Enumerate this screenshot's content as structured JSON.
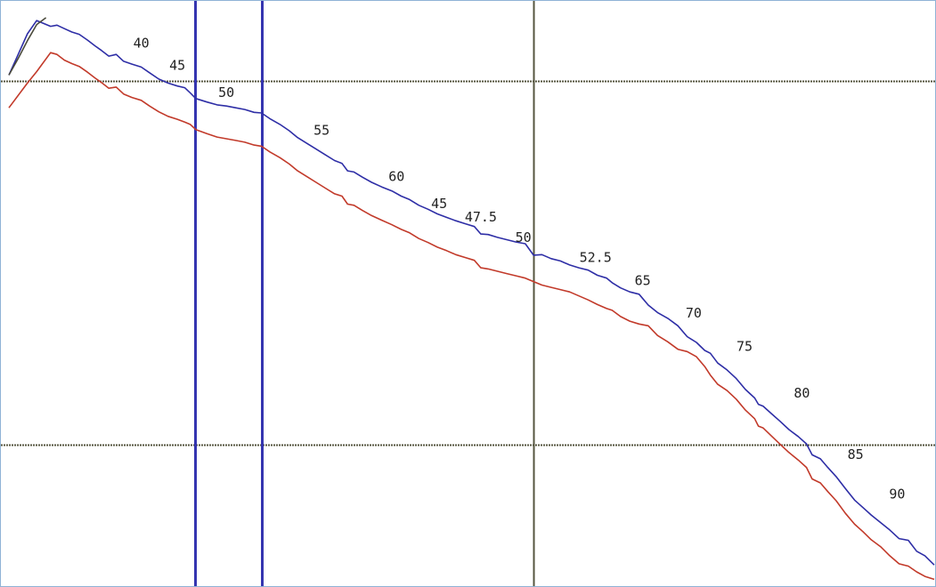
{
  "chart_data": {
    "type": "line",
    "title": "",
    "xlabel": "",
    "ylabel": "",
    "grid": false,
    "x_range": [
      0,
      100
    ],
    "y_range": [
      0,
      100
    ],
    "colors": {
      "upper_trace": "#2e2ea6",
      "lower_trace": "#c23a2a",
      "start_trace": "#4a4a3c",
      "reference_line": "#55553f",
      "marker_line": "#3535b0",
      "frame": "#8fb3d6"
    },
    "reference_lines": {
      "horizontal_y": [
        86.9,
        23.6
      ],
      "vertical_x": [
        56.7
      ]
    },
    "marker_lines_x": [
      20.1,
      27.3
    ],
    "series": [
      {
        "key": "upper",
        "x": [
          0.0,
          2.0,
          3.0,
          4.5,
          5.2,
          6.0,
          6.8,
          7.6,
          8.5,
          9.3,
          10.0,
          10.8,
          11.6,
          12.4,
          13.3,
          14.3,
          15.2,
          16.2,
          17.2,
          18.2,
          19.0,
          19.6,
          20.2,
          21.4,
          22.5,
          23.5,
          24.5,
          25.5,
          26.5,
          27.3,
          28.2,
          29.3,
          30.3,
          31.2,
          32.2,
          33.2,
          34.2,
          35.2,
          36.0,
          36.6,
          37.3,
          38.2,
          39.2,
          40.3,
          41.4,
          42.4,
          43.3,
          44.3,
          45.3,
          46.3,
          47.3,
          48.3,
          49.3,
          50.3,
          51.0,
          51.8,
          52.8,
          53.8,
          54.8,
          55.8,
          56.7,
          57.6,
          58.6,
          59.6,
          60.6,
          61.6,
          62.6,
          63.6,
          64.6,
          65.2,
          66.1,
          67.1,
          68.1,
          69.1,
          70.1,
          71.2,
          72.3,
          73.3,
          74.3,
          75.2,
          75.8,
          76.6,
          77.6,
          78.6,
          79.6,
          80.6,
          81.0,
          81.5,
          82.4,
          83.3,
          84.3,
          85.3,
          86.2,
          86.8,
          87.7,
          88.5,
          89.4,
          90.4,
          91.4,
          92.3,
          93.2,
          94.2,
          95.2,
          96.2,
          97.2,
          98.1,
          99.0,
          100.0
        ],
        "y": [
          88.0,
          95.2,
          97.5,
          96.5,
          96.7,
          96.1,
          95.5,
          95.1,
          94.1,
          93.1,
          92.3,
          91.3,
          91.6,
          90.4,
          89.9,
          89.4,
          88.4,
          87.3,
          86.6,
          86.1,
          85.8,
          84.9,
          83.9,
          83.3,
          82.8,
          82.6,
          82.3,
          82.0,
          81.5,
          81.4,
          80.4,
          79.4,
          78.3,
          77.1,
          76.1,
          75.1,
          74.1,
          73.1,
          72.6,
          71.3,
          71.1,
          70.2,
          69.3,
          68.5,
          67.8,
          66.9,
          66.3,
          65.3,
          64.6,
          63.8,
          63.2,
          62.6,
          62.1,
          61.6,
          60.3,
          60.2,
          59.7,
          59.3,
          58.9,
          58.6,
          56.6,
          56.7,
          56.0,
          55.6,
          54.9,
          54.4,
          54.0,
          53.1,
          52.6,
          51.8,
          50.9,
          50.2,
          49.8,
          47.9,
          46.6,
          45.6,
          44.3,
          42.4,
          41.4,
          40.0,
          39.5,
          37.8,
          36.6,
          35.1,
          33.2,
          31.7,
          30.6,
          30.3,
          29.0,
          27.7,
          26.2,
          25.0,
          23.7,
          21.8,
          21.1,
          19.6,
          18.0,
          15.9,
          13.9,
          12.6,
          11.3,
          10.0,
          8.7,
          7.2,
          6.9,
          5.0,
          4.2,
          2.6
        ]
      },
      {
        "key": "lower",
        "x": [
          0.0,
          2.0,
          3.0,
          4.5,
          5.2,
          6.0,
          6.8,
          7.6,
          8.5,
          9.3,
          10.0,
          10.8,
          11.6,
          12.4,
          13.3,
          14.3,
          15.2,
          16.2,
          17.2,
          18.2,
          19.0,
          19.6,
          20.2,
          21.4,
          22.5,
          23.5,
          24.5,
          25.5,
          26.5,
          27.3,
          28.2,
          29.3,
          30.3,
          31.2,
          32.2,
          33.2,
          34.2,
          35.2,
          36.0,
          36.6,
          37.3,
          38.2,
          39.2,
          40.3,
          41.4,
          42.4,
          43.3,
          44.3,
          45.3,
          46.3,
          47.3,
          48.3,
          49.3,
          50.3,
          51.0,
          51.8,
          52.8,
          53.8,
          54.8,
          55.8,
          56.7,
          57.6,
          58.6,
          59.6,
          60.6,
          61.6,
          62.6,
          63.6,
          64.6,
          65.2,
          66.1,
          67.1,
          68.1,
          69.1,
          70.1,
          71.2,
          72.3,
          73.3,
          74.3,
          75.2,
          75.8,
          76.6,
          77.6,
          78.6,
          79.6,
          80.6,
          81.0,
          81.5,
          82.4,
          83.3,
          84.3,
          85.3,
          86.2,
          86.8,
          87.7,
          88.5,
          89.4,
          90.4,
          91.4,
          92.3,
          93.2,
          94.2,
          95.2,
          96.2,
          97.2,
          98.1,
          99.0,
          100.0
        ],
        "y": [
          82.3,
          86.6,
          88.6,
          91.9,
          91.6,
          90.6,
          90.0,
          89.5,
          88.5,
          87.5,
          86.7,
          85.7,
          85.9,
          84.7,
          84.1,
          83.6,
          82.6,
          81.6,
          80.8,
          80.3,
          79.8,
          79.4,
          78.5,
          77.8,
          77.2,
          76.9,
          76.6,
          76.3,
          75.8,
          75.6,
          74.6,
          73.6,
          72.5,
          71.3,
          70.3,
          69.3,
          68.3,
          67.3,
          66.9,
          65.5,
          65.3,
          64.4,
          63.5,
          62.7,
          61.9,
          61.1,
          60.5,
          59.5,
          58.8,
          58.0,
          57.4,
          56.7,
          56.2,
          55.7,
          54.4,
          54.2,
          53.8,
          53.4,
          53.0,
          52.6,
          52.0,
          51.4,
          51.0,
          50.6,
          50.2,
          49.5,
          48.8,
          48.0,
          47.3,
          47.0,
          45.9,
          45.1,
          44.6,
          44.3,
          42.6,
          41.5,
          40.2,
          39.8,
          38.9,
          37.2,
          35.7,
          34.1,
          33.0,
          31.5,
          29.6,
          28.1,
          26.8,
          26.5,
          25.1,
          23.7,
          22.2,
          20.9,
          19.6,
          17.6,
          16.9,
          15.4,
          13.8,
          11.6,
          9.7,
          8.4,
          7.0,
          5.8,
          4.2,
          2.8,
          2.4,
          1.4,
          0.6,
          0.1
        ]
      },
      {
        "key": "start",
        "x": [
          0.0,
          1.0,
          2.0,
          3.0,
          4.0
        ],
        "y": [
          88.0,
          90.9,
          94.0,
          96.8,
          98.0
        ]
      }
    ],
    "labels": [
      {
        "text": "40",
        "x": 14.3,
        "y": 93.5
      },
      {
        "text": "45",
        "x": 18.2,
        "y": 89.6
      },
      {
        "text": "50",
        "x": 23.5,
        "y": 84.9
      },
      {
        "text": "55",
        "x": 33.8,
        "y": 78.3
      },
      {
        "text": "60",
        "x": 41.9,
        "y": 70.2
      },
      {
        "text": "45",
        "x": 46.5,
        "y": 65.5
      },
      {
        "text": "47.5",
        "x": 51.0,
        "y": 63.2
      },
      {
        "text": "50",
        "x": 55.6,
        "y": 59.6
      },
      {
        "text": "52.5",
        "x": 63.4,
        "y": 56.1
      },
      {
        "text": "65",
        "x": 68.5,
        "y": 52.1
      },
      {
        "text": "70",
        "x": 74.0,
        "y": 46.4
      },
      {
        "text": "75",
        "x": 79.5,
        "y": 40.6
      },
      {
        "text": "80",
        "x": 85.7,
        "y": 32.5
      },
      {
        "text": "85",
        "x": 91.5,
        "y": 21.8
      },
      {
        "text": "90",
        "x": 96.0,
        "y": 14.9
      }
    ]
  }
}
